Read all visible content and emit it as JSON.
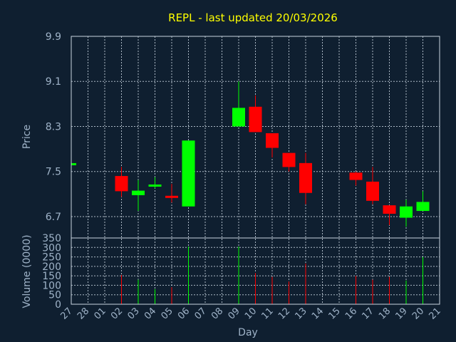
{
  "chart_data": {
    "type": "candlestick",
    "title": "REPL - last updated 20/03/2026",
    "xlabel": "Day",
    "ylabel_price": "Price",
    "ylabel_volume": "Volume (0000)",
    "x_ticks": [
      "27",
      "28",
      "01",
      "02",
      "03",
      "04",
      "05",
      "06",
      "07",
      "08",
      "09",
      "10",
      "11",
      "12",
      "13",
      "14",
      "15",
      "16",
      "17",
      "18",
      "19",
      "20",
      "21"
    ],
    "price_ticks": [
      "6.7",
      "7.5",
      "8.3",
      "9.1",
      "9.9"
    ],
    "price_tick_values": [
      6.7,
      7.5,
      8.3,
      9.1,
      9.9
    ],
    "price_range": [
      6.32,
      9.9
    ],
    "volume_ticks": [
      "0",
      "50",
      "100",
      "150",
      "200",
      "250",
      "300",
      "350"
    ],
    "volume_tick_values": [
      0,
      50,
      100,
      150,
      200,
      250,
      300,
      350
    ],
    "volume_range": [
      0,
      350
    ],
    "grid": true,
    "colors": {
      "up": "#00ff00",
      "down": "#ff0000",
      "title": "#ffff00",
      "axis_text": "#9fb3c8",
      "background": "#0f1f30",
      "grid": "#c8d4e0"
    },
    "candles": [
      {
        "day": "27",
        "open": 7.63,
        "close": 7.63,
        "high": 7.63,
        "low": 7.63,
        "volume": 0
      },
      {
        "day": "02",
        "open": 7.42,
        "close": 7.15,
        "high": 7.58,
        "low": 7.05,
        "volume": 155
      },
      {
        "day": "03",
        "open": 7.08,
        "close": 7.16,
        "high": 7.35,
        "low": 6.8,
        "volume": 130
      },
      {
        "day": "04",
        "open": 7.23,
        "close": 7.25,
        "high": 7.4,
        "low": 7.2,
        "volume": 80
      },
      {
        "day": "05",
        "open": 7.05,
        "close": 7.03,
        "high": 7.28,
        "low": 6.95,
        "volume": 90
      },
      {
        "day": "06",
        "open": 6.88,
        "close": 8.05,
        "high": 8.05,
        "low": 6.88,
        "volume": 305
      },
      {
        "day": "09",
        "open": 8.3,
        "close": 8.63,
        "high": 9.1,
        "low": 8.3,
        "volume": 305
      },
      {
        "day": "10",
        "open": 8.65,
        "close": 8.2,
        "high": 8.85,
        "low": 8.2,
        "volume": 165
      },
      {
        "day": "11",
        "open": 8.18,
        "close": 7.92,
        "high": 8.18,
        "low": 7.75,
        "volume": 145
      },
      {
        "day": "12",
        "open": 7.83,
        "close": 7.58,
        "high": 7.83,
        "low": 7.5,
        "volume": 120
      },
      {
        "day": "13",
        "open": 7.65,
        "close": 7.12,
        "high": 7.83,
        "low": 6.92,
        "volume": 215
      },
      {
        "day": "16",
        "open": 7.48,
        "close": 7.35,
        "high": 7.5,
        "low": 7.25,
        "volume": 150
      },
      {
        "day": "17",
        "open": 7.32,
        "close": 6.98,
        "high": 7.58,
        "low": 6.92,
        "volume": 130
      },
      {
        "day": "18",
        "open": 6.9,
        "close": 6.75,
        "high": 6.9,
        "low": 6.55,
        "volume": 145
      },
      {
        "day": "19",
        "open": 6.68,
        "close": 6.88,
        "high": 7.0,
        "low": 6.52,
        "volume": 125
      },
      {
        "day": "20",
        "open": 6.8,
        "close": 6.96,
        "high": 7.15,
        "low": 6.8,
        "volume": 250
      }
    ]
  }
}
